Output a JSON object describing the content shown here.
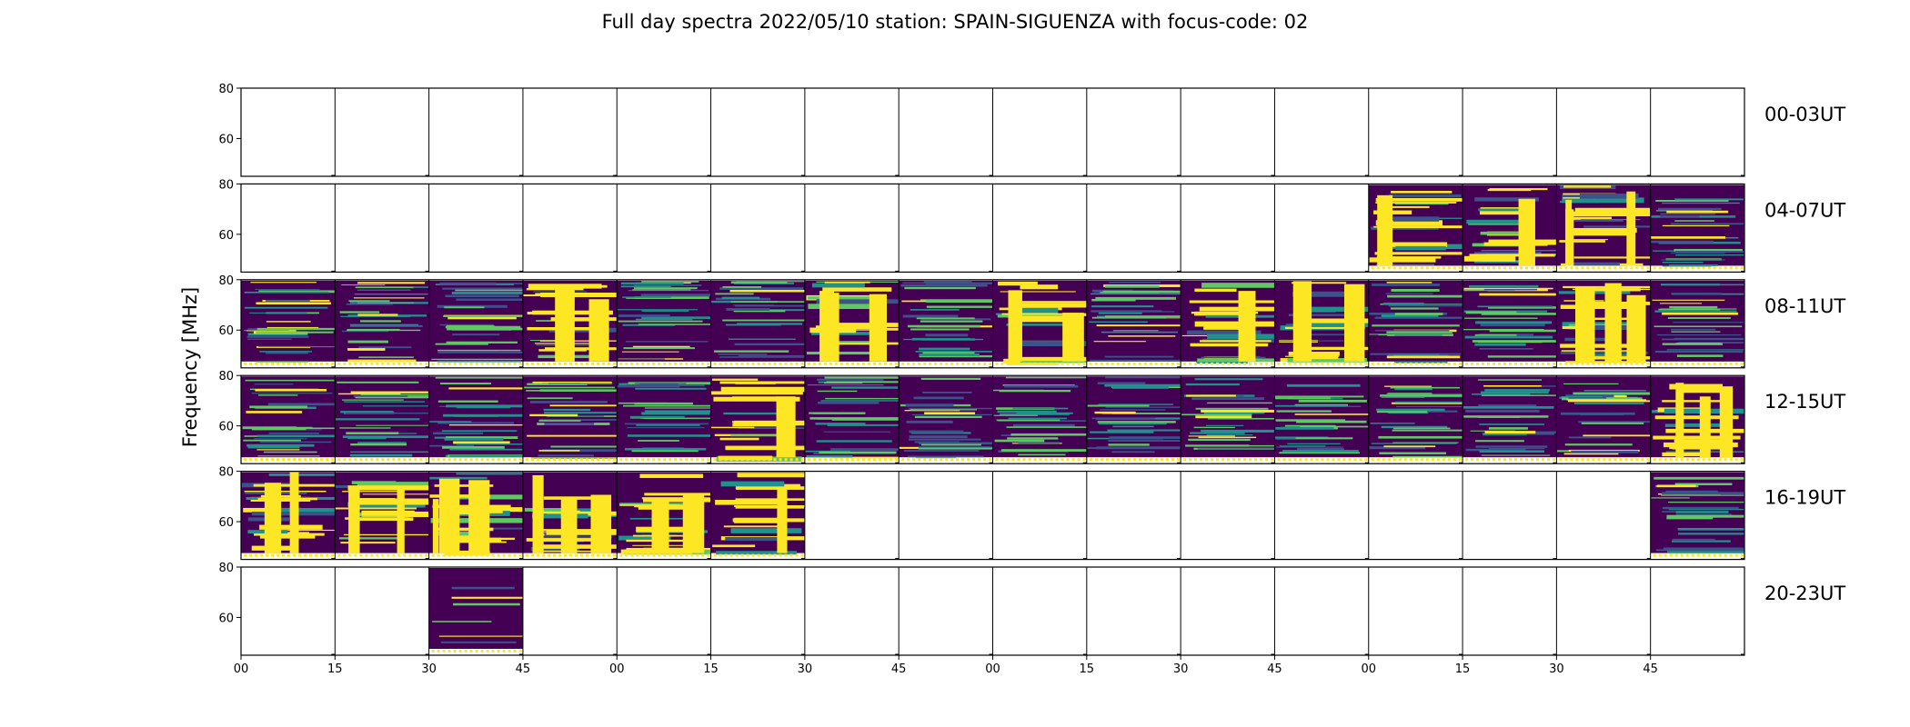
{
  "chart_data": {
    "type": "heatmap",
    "title": "Full day spectra 2022/05/10 station: SPAIN-SIGUENZA with focus-code: 02",
    "ylabel": "Frequency [MHz]",
    "xlabel": "",
    "ylim": [
      45,
      80
    ],
    "yticks": [
      "80",
      "60"
    ],
    "xtick_labels": [
      "00",
      "15",
      "30",
      "45",
      "00",
      "15",
      "30",
      "45",
      "00",
      "15",
      "30",
      "45",
      "00",
      "15",
      "30",
      "45"
    ],
    "rows": [
      {
        "label": "00-03UT",
        "slots": [
          0,
          0,
          0,
          0,
          0,
          0,
          0,
          0,
          0,
          0,
          0,
          0,
          0,
          0,
          0,
          0
        ]
      },
      {
        "label": "04-07UT",
        "slots": [
          0,
          0,
          0,
          0,
          0,
          0,
          0,
          0,
          0,
          0,
          0,
          0,
          3,
          3,
          3,
          2
        ]
      },
      {
        "label": "08-11UT",
        "slots": [
          2,
          2,
          2,
          3,
          2,
          2,
          3,
          2,
          3,
          2,
          3,
          3,
          2,
          2,
          3,
          2
        ]
      },
      {
        "label": "12-15UT",
        "slots": [
          2,
          2,
          2,
          2,
          2,
          3,
          2,
          2,
          2,
          2,
          2,
          2,
          2,
          2,
          2,
          3
        ]
      },
      {
        "label": "16-19UT",
        "slots": [
          3,
          3,
          3,
          3,
          3,
          3,
          0,
          0,
          0,
          0,
          0,
          0,
          0,
          0,
          0,
          2
        ]
      },
      {
        "label": "20-23UT",
        "slots": [
          0,
          0,
          1,
          0,
          0,
          0,
          0,
          0,
          0,
          0,
          0,
          0,
          0,
          0,
          0,
          0
        ]
      }
    ],
    "colormap": [
      "#440154",
      "#3b528b",
      "#21918c",
      "#5ec962",
      "#fde725"
    ],
    "grid": false,
    "legend": "none"
  }
}
